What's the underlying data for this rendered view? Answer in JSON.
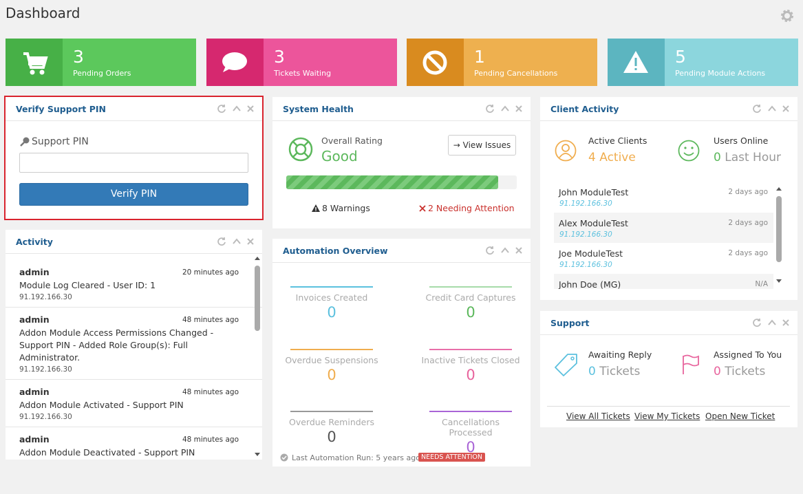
{
  "header": {
    "title": "Dashboard"
  },
  "stats": [
    {
      "value": 3,
      "label": "Pending Orders"
    },
    {
      "value": 3,
      "label": "Tickets Waiting"
    },
    {
      "value": 1,
      "label": "Pending Cancellations"
    },
    {
      "value": 5,
      "label": "Pending Module Actions"
    }
  ],
  "verify_pin": {
    "title": "Verify Support PIN",
    "field_label": "Support PIN",
    "button": "Verify PIN"
  },
  "activity": {
    "title": "Activity",
    "entries": [
      {
        "user": "admin",
        "time": "20 minutes ago",
        "description": "Module Log Cleared - User ID: 1",
        "ip": "91.192.166.30"
      },
      {
        "user": "admin",
        "time": "48 minutes ago",
        "description": "Addon Module Access Permissions Changed - Support PIN - Added Role Group(s): Full Administrator.",
        "ip": "91.192.166.30"
      },
      {
        "user": "admin",
        "time": "48 minutes ago",
        "description": "Addon Module Activated - Support PIN",
        "ip": "91.192.166.30"
      },
      {
        "user": "admin",
        "time": "48 minutes ago",
        "description": "Addon Module Deactivated - Support PIN"
      }
    ]
  },
  "system_health": {
    "title": "System Health",
    "rating_label": "Overall Rating",
    "rating": "Good",
    "button": "View Issues",
    "warnings": "8 Warnings",
    "attention": "2 Needing Attention"
  },
  "automation": {
    "title": "Automation Overview",
    "items": [
      {
        "label": "Invoices Created",
        "value": 0
      },
      {
        "label": "Credit Card Captures",
        "value": 0
      },
      {
        "label": "Overdue Suspensions",
        "value": 0
      },
      {
        "label": "Inactive Tickets Closed",
        "value": 0
      },
      {
        "label": "Overdue Reminders",
        "value": 0
      },
      {
        "label": "Cancellations Processed",
        "value": 0
      }
    ],
    "last_run": "Last Automation Run: 5 years ago",
    "badge": "NEEDS ATTENTION"
  },
  "client_activity": {
    "title": "Client Activity",
    "active_label": "Active Clients",
    "active_value": 4,
    "active_unit": "Active",
    "online_label": "Users Online",
    "online_value": 0,
    "online_unit": "Last Hour",
    "clients": [
      {
        "name": "John ModuleTest",
        "time": "2 days ago",
        "ip": "91.192.166.30"
      },
      {
        "name": "Alex ModuleTest",
        "time": "2 days ago",
        "ip": "91.192.166.30"
      },
      {
        "name": "Joe ModuleTest",
        "time": "2 days ago",
        "ip": "91.192.166.30"
      },
      {
        "name": "John Doe (MG)",
        "time": "N/A"
      }
    ]
  },
  "support": {
    "title": "Support",
    "awaiting_label": "Awaiting Reply",
    "awaiting_value": 0,
    "awaiting_unit": "Tickets",
    "assigned_label": "Assigned To You",
    "assigned_value": 0,
    "assigned_unit": "Tickets",
    "links": [
      "View All Tickets",
      "View My Tickets",
      "Open New Ticket"
    ]
  }
}
